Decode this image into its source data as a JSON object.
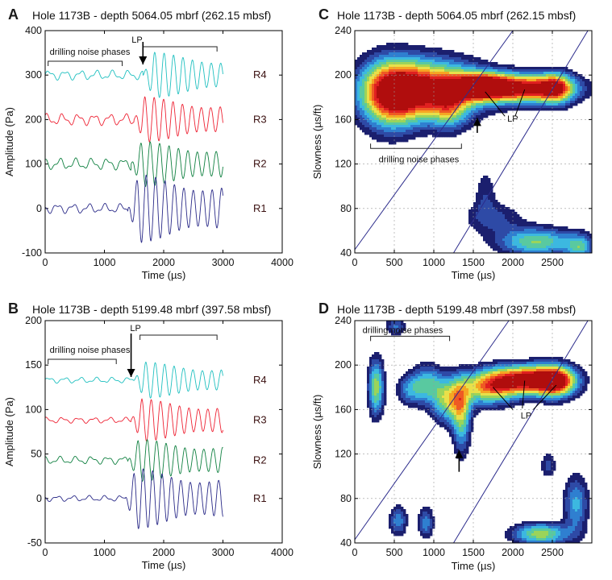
{
  "chart_data": [
    {
      "type": "line",
      "panel": "A",
      "title": "Hole 1173B - depth 5064.05 mbrf (262.15 mbsf)",
      "xlabel": "Time (µs)",
      "ylabel": "Amplitude (Pa)",
      "xlim": [
        0,
        4000
      ],
      "ylim": [
        -100,
        400
      ],
      "xticks": [
        "0",
        "1000",
        "2000",
        "3000",
        "4000"
      ],
      "yticks": [
        "-100",
        "0",
        "100",
        "200",
        "300",
        "400"
      ],
      "noise_label": "drilling noise phases",
      "noise_range": [
        50,
        1300
      ],
      "lp_label": "LP",
      "lp_range": [
        1650,
        2900
      ],
      "arrival_time": 1650,
      "series": [
        {
          "name": "R4",
          "color": "#20c0c0",
          "baseline": 300,
          "noise_amp": 10,
          "onset": 1650,
          "signal_amp": 60,
          "end": 3000
        },
        {
          "name": "R3",
          "color": "#ee2233",
          "baseline": 200,
          "noise_amp": 12,
          "onset": 1500,
          "signal_amp": 60,
          "end": 3000
        },
        {
          "name": "R2",
          "color": "#0f8040",
          "baseline": 100,
          "noise_amp": 12,
          "onset": 1450,
          "signal_amp": 60,
          "end": 3000
        },
        {
          "name": "R1",
          "color": "#2a2a88",
          "baseline": 0,
          "noise_amp": 10,
          "onset": 1400,
          "signal_amp": 90,
          "end": 3000
        }
      ]
    },
    {
      "type": "heatmap",
      "panel": "C",
      "title": "Hole 1173B - depth 5064.05 mbrf (262.15 mbsf)",
      "xlabel": "Time (µs)",
      "ylabel": "Slowness (µs/ft)",
      "xlim": [
        0,
        3000
      ],
      "ylim": [
        40,
        240
      ],
      "xticks": [
        "0",
        "500",
        "1000",
        "1500",
        "2000",
        "2500"
      ],
      "yticks": [
        "40",
        "80",
        "120",
        "160",
        "200",
        "240"
      ],
      "noise_label": "drilling noise phases",
      "noise_range": [
        200,
        1350
      ],
      "lp_label": "LP",
      "arrow_at": [
        1550,
        160
      ],
      "guide_lines": [
        [
          [
            0,
            43
          ],
          [
            2000,
            240
          ]
        ],
        [
          [
            1250,
            40
          ],
          [
            2950,
            240
          ]
        ]
      ]
    },
    {
      "type": "line",
      "panel": "B",
      "title": "Hole 1173B - depth 5199.48 mbrf (397.58 mbsf)",
      "xlabel": "Time (µs)",
      "ylabel": "Amplitude (Pa)",
      "xlim": [
        0,
        4000
      ],
      "ylim": [
        -50,
        200
      ],
      "xticks": [
        "0",
        "1000",
        "2000",
        "3000",
        "4000"
      ],
      "yticks": [
        "-50",
        "0",
        "50",
        "100",
        "150",
        "200"
      ],
      "noise_label": "drilling noise phases",
      "noise_range": [
        50,
        1200
      ],
      "lp_label": "LP",
      "lp_range": [
        1600,
        2900
      ],
      "arrival_time": 1450,
      "series": [
        {
          "name": "R4",
          "color": "#20c0c0",
          "baseline": 133,
          "noise_amp": 3,
          "onset": 1500,
          "signal_amp": 24,
          "end": 3000
        },
        {
          "name": "R3",
          "color": "#ee2233",
          "baseline": 88,
          "noise_amp": 3,
          "onset": 1450,
          "signal_amp": 28,
          "end": 3000
        },
        {
          "name": "R2",
          "color": "#0f8040",
          "baseline": 43,
          "noise_amp": 4,
          "onset": 1400,
          "signal_amp": 28,
          "end": 3000
        },
        {
          "name": "R1",
          "color": "#2a2a88",
          "baseline": 0,
          "noise_amp": 3,
          "onset": 1350,
          "signal_amp": 40,
          "end": 3000
        }
      ]
    },
    {
      "type": "heatmap",
      "panel": "D",
      "title": "Hole 1173B - depth 5199.48 mbrf (397.58 mbsf)",
      "xlabel": "Time (µs)",
      "ylabel": "Slowness (µs/ft)",
      "xlim": [
        0,
        3000
      ],
      "ylim": [
        40,
        240
      ],
      "xticks": [
        "0",
        "500",
        "1000",
        "1500",
        "2000",
        "2500"
      ],
      "yticks": [
        "40",
        "80",
        "120",
        "160",
        "200",
        "240"
      ],
      "noise_label": "drilling noise phases",
      "noise_range": [
        200,
        1200
      ],
      "lp_label": "LP",
      "arrow_at": [
        1320,
        125
      ],
      "guide_lines": [
        [
          [
            0,
            43
          ],
          [
            1950,
            240
          ]
        ],
        [
          [
            1250,
            40
          ],
          [
            2950,
            240
          ]
        ]
      ]
    }
  ],
  "contour_colors": [
    "#1b1f6e",
    "#2e4aa6",
    "#2f7fd0",
    "#3cb8e0",
    "#59c9a0",
    "#9bd45a",
    "#e8e04a",
    "#f5a623",
    "#ee5a24",
    "#e02020",
    "#b00d0d"
  ]
}
